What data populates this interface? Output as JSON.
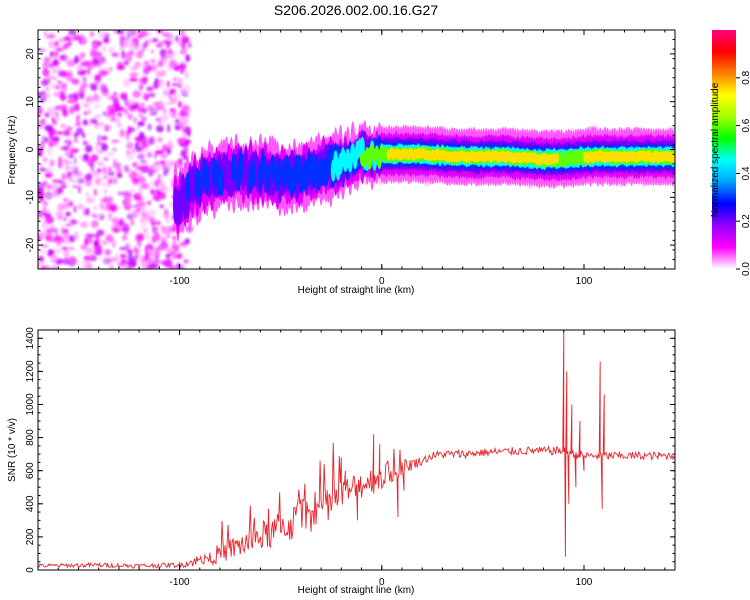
{
  "title": "S206.2026.002.00.16.G27",
  "chart_data": [
    {
      "type": "heatmap",
      "name": "spectrogram",
      "xlabel": "Height of straight line (km)",
      "ylabel": "Frequency (Hz)",
      "xlim": [
        -170,
        145
      ],
      "ylim": [
        -25,
        25
      ],
      "xticks": [
        -100,
        0,
        100
      ],
      "yticks": [
        -20,
        -10,
        0,
        10,
        20
      ],
      "colorbar": {
        "label": "Normalized spectral amplitude",
        "range": [
          0,
          1
        ],
        "ticks": [
          0.0,
          0.2,
          0.4,
          0.6,
          0.8
        ],
        "colormap": [
          "#ffffff",
          "#ff00ff",
          "#9400ff",
          "#0000ff",
          "#00a0ff",
          "#00ffff",
          "#00ff00",
          "#a0ff00",
          "#ffff00",
          "#ff8000",
          "#ff0000",
          "#ff0080"
        ]
      },
      "ridge": {
        "x": [
          -100,
          -90,
          -80,
          -70,
          -60,
          -50,
          -40,
          -30,
          -20,
          -10,
          0,
          10,
          20,
          40,
          60,
          80,
          90,
          100,
          110,
          120,
          130,
          145
        ],
        "freq": [
          -11,
          -7,
          -5.5,
          -4.5,
          -5,
          -6,
          -5,
          -4,
          -3,
          -1,
          -1,
          -1,
          -1,
          -1.5,
          -1.5,
          -2,
          -2,
          -1.5,
          -1.5,
          -1.5,
          -1.5,
          -1.5
        ],
        "amplitude": [
          0.25,
          0.3,
          0.3,
          0.3,
          0.3,
          0.32,
          0.35,
          0.32,
          0.5,
          0.6,
          0.7,
          0.85,
          0.88,
          0.85,
          0.88,
          0.85,
          0.7,
          0.75,
          0.85,
          0.88,
          0.85,
          0.8
        ]
      }
    },
    {
      "type": "line",
      "name": "snr",
      "xlabel": "Height of straight line (km)",
      "ylabel": "SNR (10 * v/v)",
      "xlim": [
        -170,
        145
      ],
      "ylim": [
        0,
        1450
      ],
      "xticks": [
        -100,
        0,
        100
      ],
      "yticks": [
        0,
        200,
        400,
        600,
        800,
        1000,
        1200,
        1400
      ],
      "color": "#e8242a",
      "trend": {
        "x": [
          -170,
          -140,
          -120,
          -100,
          -90,
          -80,
          -70,
          -60,
          -50,
          -40,
          -30,
          -20,
          -10,
          0,
          10,
          20,
          25,
          30,
          40,
          50,
          60,
          70,
          80,
          85,
          90,
          95,
          100,
          105,
          110,
          120,
          130,
          145
        ],
        "y": [
          25,
          30,
          25,
          30,
          60,
          100,
          150,
          200,
          250,
          310,
          380,
          450,
          520,
          560,
          620,
          660,
          690,
          700,
          700,
          710,
          715,
          720,
          720,
          720,
          720,
          700,
          690,
          690,
          690,
          690,
          690,
          690
        ]
      },
      "noise_amplitude": {
        "x": [
          -170,
          -100,
          -80,
          -40,
          0,
          20,
          80,
          145
        ],
        "y": [
          12,
          15,
          60,
          120,
          80,
          25,
          25,
          25
        ]
      },
      "peaks": [
        {
          "x": -20,
          "y": 680
        },
        {
          "x": -18,
          "y": 600
        },
        {
          "x": -12,
          "y": 300
        },
        {
          "x": -4,
          "y": 820
        },
        {
          "x": -1,
          "y": 760
        },
        {
          "x": 8,
          "y": 320
        },
        {
          "x": 11,
          "y": 480
        },
        {
          "x": 90,
          "y": 1450
        },
        {
          "x": 90.8,
          "y": 80
        },
        {
          "x": 91.5,
          "y": 1200
        },
        {
          "x": 92.5,
          "y": 400
        },
        {
          "x": 94,
          "y": 1000
        },
        {
          "x": 96,
          "y": 500
        },
        {
          "x": 98,
          "y": 900
        },
        {
          "x": 100,
          "y": 600
        },
        {
          "x": 108,
          "y": 1260
        },
        {
          "x": 109,
          "y": 370
        },
        {
          "x": 110,
          "y": 1060
        }
      ]
    }
  ]
}
